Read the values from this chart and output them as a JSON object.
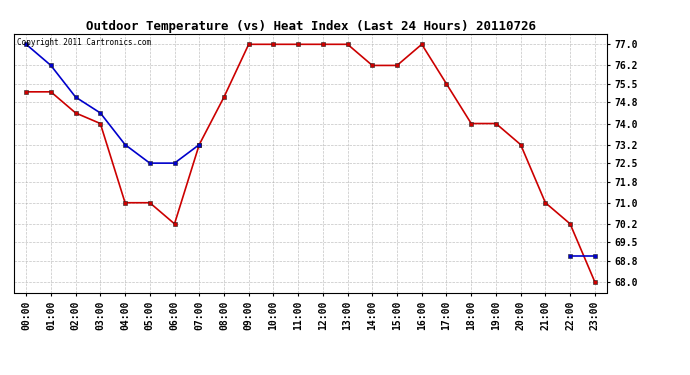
{
  "title": "Outdoor Temperature (vs) Heat Index (Last 24 Hours) 20110726",
  "copyright_text": "Copyright 2011 Cartronics.com",
  "x_labels": [
    "00:00",
    "01:00",
    "02:00",
    "03:00",
    "04:00",
    "05:00",
    "06:00",
    "07:00",
    "08:00",
    "09:00",
    "10:00",
    "11:00",
    "12:00",
    "13:00",
    "14:00",
    "15:00",
    "16:00",
    "17:00",
    "18:00",
    "19:00",
    "20:00",
    "21:00",
    "22:00",
    "23:00"
  ],
  "y_ticks": [
    68.0,
    68.8,
    69.5,
    70.2,
    71.0,
    71.8,
    72.5,
    73.2,
    74.0,
    74.8,
    75.5,
    76.2,
    77.0
  ],
  "ylim": [
    67.6,
    77.4
  ],
  "red_line": [
    75.2,
    75.2,
    74.4,
    74.0,
    71.0,
    71.0,
    70.2,
    73.2,
    75.0,
    77.0,
    77.0,
    77.0,
    77.0,
    77.0,
    76.2,
    76.2,
    77.0,
    75.5,
    74.0,
    74.0,
    73.2,
    71.0,
    70.2,
    68.0
  ],
  "blue_line": [
    77.0,
    76.2,
    75.0,
    74.4,
    73.2,
    72.5,
    72.5,
    73.2,
    null,
    null,
    null,
    null,
    null,
    null,
    null,
    null,
    null,
    null,
    null,
    null,
    null,
    null,
    69.0,
    69.0
  ],
  "red_color": "#cc0000",
  "blue_color": "#0000cc",
  "bg_color": "#ffffff",
  "plot_bg_color": "#ffffff",
  "grid_color": "#aaaaaa",
  "title_fontsize": 9,
  "tick_fontsize": 7,
  "copyright_fontsize": 5.5,
  "marker_size": 2.5,
  "line_width": 1.2
}
